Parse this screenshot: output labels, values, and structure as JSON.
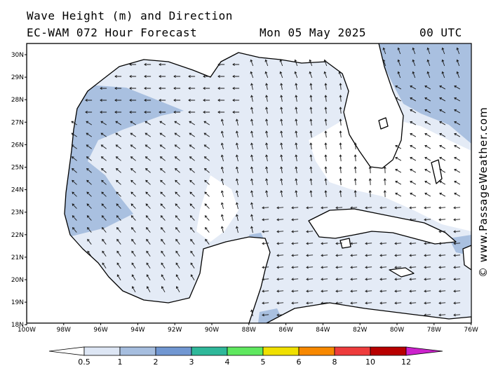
{
  "header": {
    "title": "Wave Height (m) and Direction",
    "model_line": "EC-WAM 072 Hour Forecast",
    "date": "Mon 05 May 2025",
    "time": "00 UTC"
  },
  "credit": "© www.PassageWeather.com",
  "map": {
    "lat_ticks": [
      "30N",
      "29N",
      "28N",
      "27N",
      "26N",
      "25N",
      "24N",
      "23N",
      "22N",
      "21N",
      "20N",
      "19N",
      "18N"
    ],
    "lon_ticks": [
      "100W",
      "98W",
      "96W",
      "94W",
      "92W",
      "90W",
      "88W",
      "86W",
      "84W",
      "82W",
      "80W",
      "78W",
      "76W"
    ]
  },
  "colorbar": {
    "labels": [
      "0.5",
      "1",
      "2",
      "3",
      "4",
      "5",
      "6",
      "8",
      "10",
      "12"
    ],
    "colors": [
      "#dde6f4",
      "#a6bedf",
      "#7197d2",
      "#2fb89a",
      "#5fe85f",
      "#f0e000",
      "#f78800",
      "#ee3c3c",
      "#b80000",
      "#cc22cc"
    ]
  },
  "colors": {
    "sea_light": "#e4ebf6",
    "sea_mid": "#a9c0e0",
    "sea_white": "#ffffff",
    "land": "#ffffff",
    "coast": "#000000",
    "arrow": "#1a1a1a"
  }
}
